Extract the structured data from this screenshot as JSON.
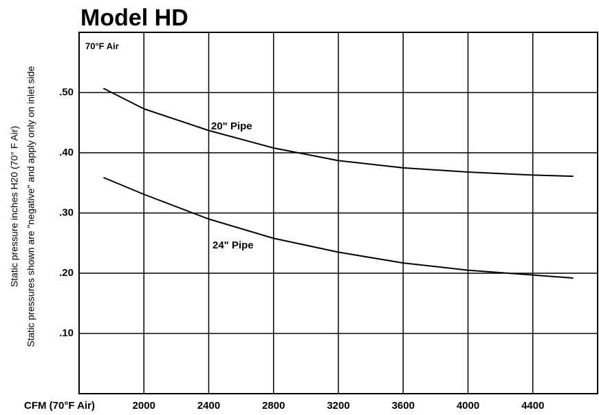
{
  "chart_data": {
    "type": "line",
    "title": "Model HD",
    "x_label": "CFM (70°F Air)",
    "y_label": [
      "Static pressure inches H20 (70° F Air)",
      "Static pressures shown are \"negative\" and apply only on inlet side"
    ],
    "annotations": [
      "70°F Air",
      "20\" Pipe",
      "24\" Pipe"
    ],
    "x": [
      1750,
      2000,
      2400,
      2800,
      3200,
      3600,
      4000,
      4400,
      4650
    ],
    "series": [
      {
        "name": "20\" Pipe",
        "color": "#000000",
        "values": [
          0.507,
          0.473,
          0.437,
          0.408,
          0.387,
          0.375,
          0.368,
          0.363,
          0.361
        ]
      },
      {
        "name": "24\" Pipe",
        "color": "#000000",
        "values": [
          0.359,
          0.331,
          0.29,
          0.258,
          0.235,
          0.217,
          0.205,
          0.197,
          0.192
        ]
      }
    ],
    "xlim": [
      1600,
      4800
    ],
    "xticks": [
      2000,
      2400,
      2800,
      3200,
      3600,
      4000,
      4400
    ],
    "ylim": [
      0,
      0.6
    ],
    "yticks": [
      {
        "value": 0.1,
        "label": ".10"
      },
      {
        "value": 0.2,
        "label": ".20"
      },
      {
        "value": 0.3,
        "label": ".30"
      },
      {
        "value": 0.4,
        "label": ".40"
      },
      {
        "value": 0.5,
        "label": ".50"
      }
    ],
    "grid": true
  }
}
